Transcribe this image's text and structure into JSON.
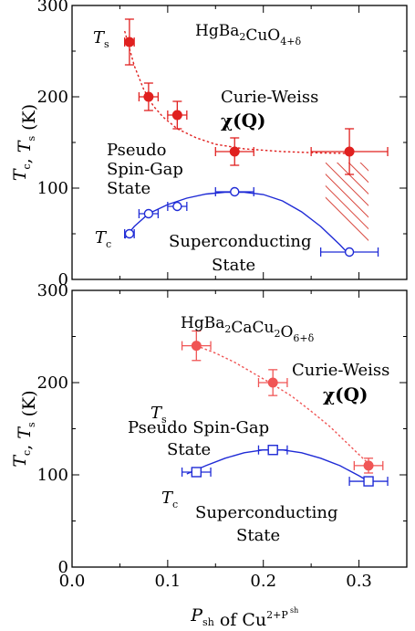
{
  "chart_data": [
    {
      "type": "scatter",
      "panel": "top",
      "formula": {
        "base": "HgBa",
        "sub1": "2",
        "mid": "CuO",
        "sub2": "4+δ"
      },
      "xlim": [
        0,
        0.35
      ],
      "ylim": [
        0,
        300
      ],
      "x_ticks": [
        0,
        0.1,
        0.2,
        0.3
      ],
      "y_ticks": [
        0,
        100,
        200,
        300
      ],
      "y_tick_labels": [
        "0",
        "100",
        "200",
        "300"
      ],
      "ylabel": {
        "t1": "T",
        "s1": "c",
        "sep": ", ",
        "t2": "T",
        "s2": "s",
        "unit": " (K)"
      },
      "annotations": {
        "ts_label": {
          "main": "T",
          "sub": "s"
        },
        "tc_label": {
          "main": "T",
          "sub": "c"
        },
        "curie_weiss": "Curie-Weiss",
        "chi_q": {
          "chi": "χ(",
          "q": "Q",
          "close": ")"
        },
        "pseudo_lines": [
          "Pseudo",
          "Spin-Gap",
          "State"
        ],
        "sc_lines": [
          "Superconducting",
          "State"
        ]
      },
      "series": [
        {
          "name": "Ts",
          "marker": "filled-circle",
          "color": "#e0201f",
          "points": [
            {
              "x": 0.06,
              "y": 260,
              "xerr": 0.005,
              "yerr": 25
            },
            {
              "x": 0.08,
              "y": 200,
              "xerr": 0.01,
              "yerr": 15
            },
            {
              "x": 0.11,
              "y": 180,
              "xerr": 0.01,
              "yerr": 15
            },
            {
              "x": 0.17,
              "y": 140,
              "xerr": 0.02,
              "yerr": 15
            },
            {
              "x": 0.29,
              "y": 140,
              "xerr": 0.04,
              "yerr": 25
            }
          ],
          "fit_line": {
            "style": "dotted",
            "points": [
              [
                0.055,
                272
              ],
              [
                0.065,
                234
              ],
              [
                0.075,
                208
              ],
              [
                0.085,
                190
              ],
              [
                0.095,
                178
              ],
              [
                0.11,
                165
              ],
              [
                0.13,
                155
              ],
              [
                0.15,
                148
              ],
              [
                0.18,
                143
              ],
              [
                0.22,
                140
              ],
              [
                0.26,
                138.5
              ],
              [
                0.29,
                138
              ]
            ]
          }
        },
        {
          "name": "Tc",
          "marker": "open-circle",
          "color": "#1f2bd6",
          "points": [
            {
              "x": 0.06,
              "y": 50,
              "xerr": 0.005,
              "yerr": 0
            },
            {
              "x": 0.08,
              "y": 72,
              "xerr": 0.01,
              "yerr": 0
            },
            {
              "x": 0.11,
              "y": 80,
              "xerr": 0.01,
              "yerr": 0
            },
            {
              "x": 0.17,
              "y": 96,
              "xerr": 0.02,
              "yerr": 0
            },
            {
              "x": 0.29,
              "y": 30,
              "xerr": 0.03,
              "yerr": 0
            }
          ],
          "fit_line": {
            "style": "solid",
            "points": [
              [
                0.055,
                45
              ],
              [
                0.065,
                58
              ],
              [
                0.08,
                72
              ],
              [
                0.1,
                82
              ],
              [
                0.12,
                89
              ],
              [
                0.14,
                93.5
              ],
              [
                0.16,
                95.5
              ],
              [
                0.18,
                95.5
              ],
              [
                0.2,
                93
              ],
              [
                0.22,
                86
              ],
              [
                0.24,
                74
              ],
              [
                0.26,
                58
              ],
              [
                0.28,
                38
              ],
              [
                0.29,
                27
              ]
            ]
          }
        }
      ],
      "hatched_region": {
        "x0": 0.265,
        "x1": 0.31,
        "y_top": 128,
        "y_bottom_left": 88,
        "y_bottom_right": 32,
        "color": "#d9483f"
      }
    },
    {
      "type": "scatter",
      "panel": "bottom",
      "formula": {
        "base": "HgBa",
        "sub1": "2",
        "mid": "CaCu",
        "sub2": "2",
        "end": "O",
        "sub3": "6+δ"
      },
      "xlim": [
        0,
        0.35
      ],
      "ylim": [
        0,
        300
      ],
      "x_ticks": [
        0,
        0.1,
        0.2,
        0.3
      ],
      "x_tick_labels": [
        "0.0",
        "0.1",
        "0.2",
        "0.3"
      ],
      "y_ticks": [
        0,
        100,
        200,
        300
      ],
      "y_tick_labels": [
        "0",
        "100",
        "200",
        "300"
      ],
      "ylabel": {
        "t1": "T",
        "s1": "c",
        "sep": ", ",
        "t2": "T",
        "s2": "s",
        "unit": " (K)"
      },
      "xlabel": {
        "p": "P",
        "psub": "sh",
        "of": " of Cu",
        "sup": "2+P",
        "supsub": "sh"
      },
      "annotations": {
        "ts_label": {
          "main": "T",
          "sub": "s"
        },
        "tc_label": {
          "main": "T",
          "sub": "c"
        },
        "curie_weiss": "Curie-Weiss",
        "chi_q": {
          "chi": "χ(",
          "q": "Q",
          "close": ")"
        },
        "pseudo_lines": [
          "Pseudo Spin-Gap",
          "State"
        ],
        "sc_lines": [
          "Superconducting",
          "State"
        ]
      },
      "series": [
        {
          "name": "Ts",
          "marker": "filled-circle",
          "color": "#f05555",
          "points": [
            {
              "x": 0.13,
              "y": 240,
              "xerr": 0.015,
              "yerr": 16
            },
            {
              "x": 0.21,
              "y": 200,
              "xerr": 0.015,
              "yerr": 14
            },
            {
              "x": 0.31,
              "y": 110,
              "xerr": 0.015,
              "yerr": 8
            }
          ],
          "fit_line": {
            "style": "dotted",
            "points": [
              [
                0.13,
                240
              ],
              [
                0.15,
                232
              ],
              [
                0.17,
                222
              ],
              [
                0.19,
                210
              ],
              [
                0.21,
                198
              ],
              [
                0.23,
                185
              ],
              [
                0.25,
                169
              ],
              [
                0.27,
                152
              ],
              [
                0.29,
                132
              ],
              [
                0.31,
                112
              ]
            ]
          }
        },
        {
          "name": "Tc",
          "marker": "open-square",
          "color": "#1f2bd6",
          "points": [
            {
              "x": 0.13,
              "y": 103,
              "xerr": 0.015,
              "yerr": 0
            },
            {
              "x": 0.21,
              "y": 127,
              "xerr": 0.015,
              "yerr": 0
            },
            {
              "x": 0.31,
              "y": 93,
              "xerr": 0.02,
              "yerr": 0
            }
          ],
          "fit_line": {
            "style": "solid",
            "points": [
              [
                0.12,
                101
              ],
              [
                0.14,
                110
              ],
              [
                0.16,
                118
              ],
              [
                0.18,
                124
              ],
              [
                0.2,
                127
              ],
              [
                0.22,
                127
              ],
              [
                0.24,
                124
              ],
              [
                0.26,
                118
              ],
              [
                0.28,
                110
              ],
              [
                0.3,
                99
              ],
              [
                0.315,
                90
              ]
            ]
          }
        }
      ]
    }
  ]
}
